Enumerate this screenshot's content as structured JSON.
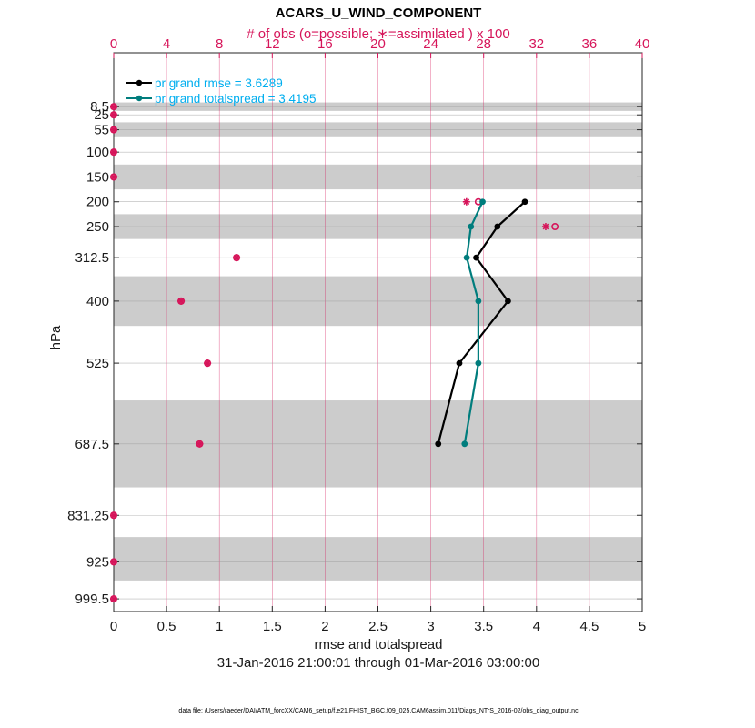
{
  "chart_data": {
    "type": "line",
    "title": "ACARS_U_WIND_COMPONENT",
    "top_axis_label": "# of obs (o=possible; ∗=assimilated ) x 100",
    "xlabel": "rmse and totalspread",
    "ylabel": "hPa",
    "date_range": "31-Jan-2016 21:00:01 through 01-Mar-2016 03:00:00",
    "footer": "data file: /Users/raeder/DAI/ATM_forcXX/CAM6_setup/f.e21.FHIST_BGC.f09_025.CAM6assim.011/Diags_NTrS_2016-02/obs_diag_output.nc",
    "xlim": [
      0,
      5
    ],
    "x_ticks": [
      "0",
      "0.5",
      "1",
      "1.5",
      "2",
      "2.5",
      "3",
      "3.5",
      "4",
      "4.5",
      "5"
    ],
    "top_xlim": [
      0,
      40
    ],
    "top_ticks": [
      "0",
      "4",
      "8",
      "12",
      "16",
      "20",
      "24",
      "28",
      "32",
      "36",
      "40"
    ],
    "ylim": [
      1025,
      -100
    ],
    "levels": [
      8.5,
      25,
      55,
      100,
      150,
      200,
      250,
      312.5,
      400,
      525,
      687.5,
      831.25,
      925,
      999.5
    ],
    "level_labels": [
      "8.5",
      "25",
      "55",
      "100",
      "150",
      "200",
      "250",
      "312.5",
      "400",
      "525",
      "687.5",
      "831.25",
      "925",
      "999.5"
    ],
    "level_bands": [
      [
        0,
        17
      ],
      [
        40,
        70
      ],
      [
        125,
        175
      ],
      [
        225,
        275
      ],
      [
        350,
        450
      ],
      [
        600,
        775
      ],
      [
        875,
        962.5
      ]
    ],
    "series": [
      {
        "name": "rmse",
        "legend": "pr grand rmse = 3.6289",
        "color": "#000000",
        "levels": [
          200,
          250,
          312.5,
          400,
          525,
          687.5
        ],
        "values": [
          3.89,
          3.63,
          3.43,
          3.73,
          3.27,
          3.07
        ]
      },
      {
        "name": "totalspread",
        "legend": "pr grand totalspread = 3.4195",
        "color": "#007d7d",
        "levels": [
          200,
          250,
          312.5,
          400,
          525,
          687.5
        ],
        "values": [
          3.49,
          3.38,
          3.34,
          3.45,
          3.45,
          3.32
        ]
      }
    ],
    "obs_possible": {
      "levels": [
        8.5,
        25,
        55,
        100,
        150,
        200,
        250,
        312.5,
        400,
        525,
        687.5,
        831.25,
        925,
        999.5
      ],
      "values": [
        0,
        0,
        0,
        0,
        0,
        27.6,
        33.4,
        9.3,
        5.1,
        7.1,
        6.5,
        0,
        0,
        0
      ]
    },
    "obs_assimilated": {
      "levels": [
        8.5,
        25,
        55,
        100,
        150,
        200,
        250,
        312.5,
        400,
        525,
        687.5,
        831.25,
        925,
        999.5
      ],
      "values": [
        0,
        0,
        0,
        0,
        0,
        26.7,
        32.7,
        9.3,
        5.1,
        7.1,
        6.5,
        0,
        0,
        0
      ]
    },
    "colors": {
      "obs": "#d6155a",
      "band": "#cccccc",
      "legend_text": "#00aeef"
    }
  }
}
